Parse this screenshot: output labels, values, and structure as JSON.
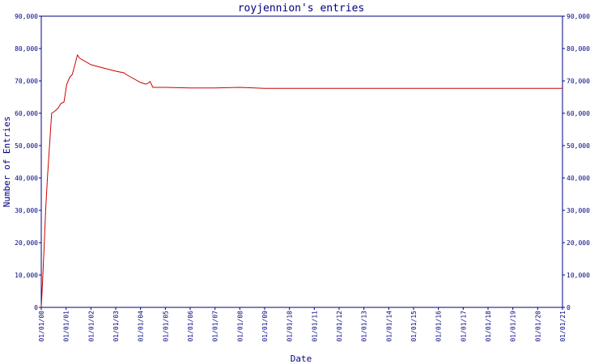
{
  "chart_data": {
    "type": "line",
    "title": "royjennion's entries",
    "xlabel": "Date",
    "ylabel": "Number of Entries",
    "x_tick_labels": [
      "01/01/00",
      "01/01/01",
      "01/01/02",
      "01/01/03",
      "01/01/04",
      "01/01/05",
      "01/01/06",
      "01/01/07",
      "01/01/08",
      "01/01/09",
      "01/01/10",
      "01/01/11",
      "01/01/12",
      "01/01/13",
      "01/01/14",
      "01/01/15",
      "01/01/16",
      "01/01/17",
      "01/01/18",
      "01/01/19",
      "01/01/20",
      "01/01/21"
    ],
    "y_tick_labels": [
      "0",
      "10,000",
      "20,000",
      "30,000",
      "40,000",
      "50,000",
      "60,000",
      "70,000",
      "80,000",
      "90,000"
    ],
    "xlim": [
      "2000-01-01",
      "2021-01-01"
    ],
    "ylim": [
      0,
      90000
    ],
    "grid": false,
    "colors": {
      "line": "#cc0000",
      "axes": "#000080"
    },
    "series": [
      {
        "x": [
          "2000-01-01",
          "2000-01-20",
          "2000-02-10",
          "2000-03-05",
          "2000-04-01",
          "2000-05-01",
          "2000-06-01",
          "2000-07-10",
          "2000-09-01",
          "2000-10-15",
          "2000-12-01",
          "2001-01-10",
          "2001-02-20",
          "2001-04-01",
          "2001-05-10",
          "2001-06-15",
          "2001-07-20",
          "2002-01-01",
          "2002-07-01",
          "2003-01-01",
          "2003-05-01",
          "2003-06-01",
          "2004-01-01",
          "2004-03-15",
          "2004-04-15",
          "2004-05-20",
          "2004-07-01",
          "2005-01-01",
          "2006-01-01",
          "2007-01-01",
          "2008-01-01",
          "2009-01-01",
          "2021-01-01"
        ],
        "y": [
          0,
          8000,
          18000,
          30000,
          40000,
          50000,
          60000,
          60500,
          61500,
          63000,
          63500,
          69000,
          71000,
          72000,
          75000,
          78000,
          77000,
          75000,
          74000,
          73000,
          72500,
          72000,
          69500,
          69000,
          69200,
          69800,
          68000,
          68000,
          67800,
          67800,
          68000,
          67700,
          67700
        ]
      }
    ]
  }
}
